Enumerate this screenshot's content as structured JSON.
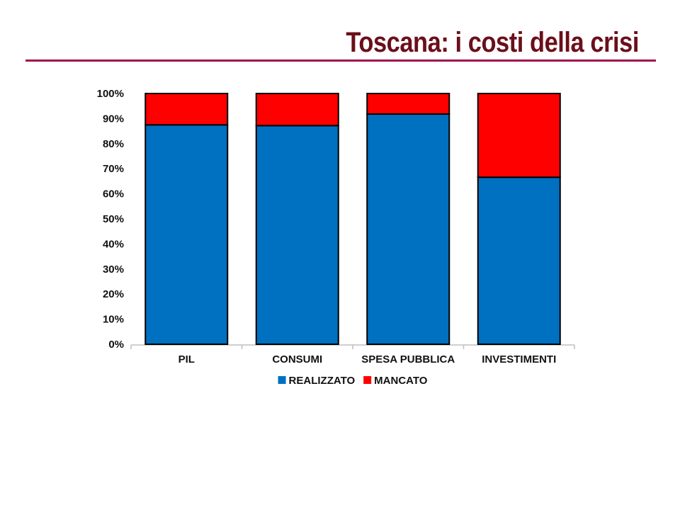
{
  "slide": {
    "title": "Toscana: i costi della crisi",
    "title_color": "#6b0f1a",
    "rule_color": "#a0114f"
  },
  "chart_data": {
    "type": "bar",
    "stacked": true,
    "categories": [
      "PIL",
      "CONSUMI",
      "SPESA PUBBLICA",
      "INVESTIMENTI"
    ],
    "series": [
      {
        "name": "REALIZZATO",
        "color": "#0070c0",
        "values": [
          87.5,
          87.2,
          91.8,
          66.6
        ]
      },
      {
        "name": "MANCATO",
        "color": "#ff0000",
        "values": [
          12.5,
          12.8,
          8.2,
          33.4
        ]
      }
    ],
    "ylim": [
      0,
      100
    ],
    "y_ticks": [
      "0%",
      "10%",
      "20%",
      "30%",
      "40%",
      "50%",
      "60%",
      "70%",
      "80%",
      "90%",
      "100%"
    ],
    "grid": false,
    "legend_position": "bottom",
    "title": "",
    "xlabel": "",
    "ylabel": ""
  }
}
